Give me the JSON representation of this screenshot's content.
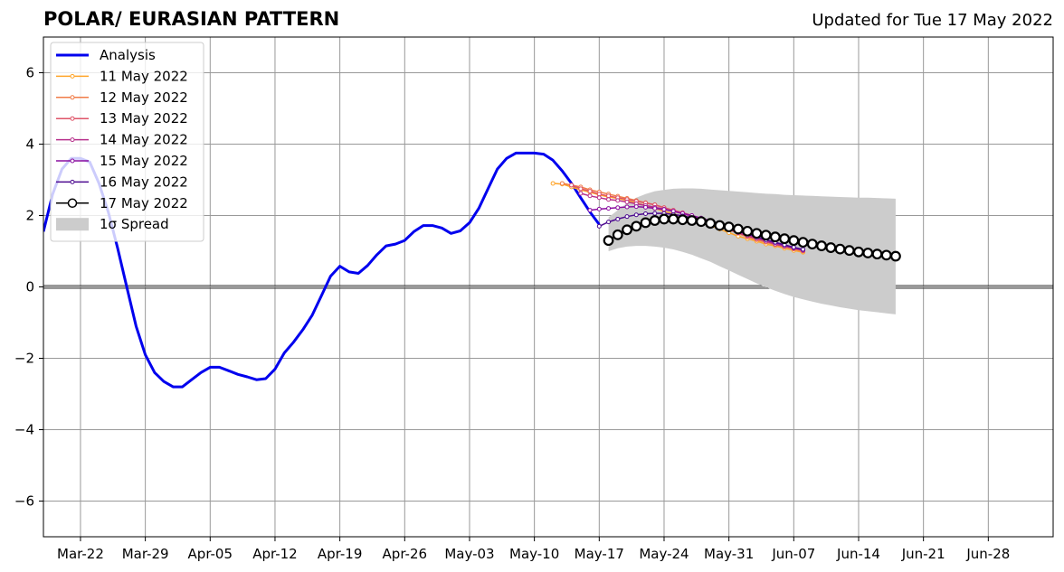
{
  "chart_data": {
    "type": "line",
    "title": "POLAR/ EURASIAN  PATTERN",
    "subtitle": "Updated for Tue 17 May 2022",
    "xlabel": "",
    "ylabel": "",
    "x_start": "2022-03-16",
    "x_ticks": [
      "Mar-22",
      "Mar-29",
      "Apr-05",
      "Apr-12",
      "Apr-19",
      "Apr-26",
      "May-03",
      "May-10",
      "May-17",
      "May-24",
      "May-31",
      "Jun-07",
      "Jun-14",
      "Jun-21",
      "Jun-28"
    ],
    "xlim": [
      "2022-03-18",
      "2022-07-05"
    ],
    "ylim": [
      -7,
      7
    ],
    "y_ticks": [
      -6,
      -4,
      -2,
      0,
      2,
      4,
      6
    ],
    "grid": true,
    "legend_position": "upper left",
    "analysis": {
      "name": "Analysis",
      "color": "#0000ee",
      "start_date": "2022-03-18",
      "values": [
        1.55,
        2.6,
        3.3,
        3.6,
        3.6,
        3.5,
        2.9,
        2.1,
        1.1,
        0.0,
        -1.1,
        -1.9,
        -2.4,
        -2.65,
        -2.8,
        -2.8,
        -2.6,
        -2.4,
        -2.25,
        -2.25,
        -2.35,
        -2.45,
        -2.52,
        -2.6,
        -2.57,
        -2.3,
        -1.85,
        -1.55,
        -1.2,
        -0.8,
        -0.25,
        0.3,
        0.58,
        0.42,
        0.38,
        0.6,
        0.9,
        1.15,
        1.2,
        1.3,
        1.55,
        1.72,
        1.72,
        1.65,
        1.5,
        1.57,
        1.8,
        2.2,
        2.75,
        3.3,
        3.6,
        3.75,
        3.75,
        3.75,
        3.72,
        3.55,
        3.25,
        2.9,
        2.5,
        2.1,
        1.75
      ]
    },
    "forecasts": [
      {
        "name": "11 May 2022",
        "color": "#ffa52a",
        "start_date": "2022-05-12",
        "values": [
          2.9,
          2.88,
          2.8,
          2.72,
          2.65,
          2.58,
          2.52,
          2.48,
          2.42,
          2.35,
          2.28,
          2.2,
          2.12,
          2.05,
          1.97,
          1.9,
          1.82,
          1.72,
          1.62,
          1.52,
          1.42,
          1.35,
          1.28,
          1.2,
          1.15,
          1.08,
          1.02,
          0.97
        ]
      },
      {
        "name": "12 May 2022",
        "color": "#f07c48",
        "start_date": "2022-05-13",
        "values": [
          2.9,
          2.85,
          2.8,
          2.72,
          2.66,
          2.6,
          2.54,
          2.48,
          2.42,
          2.36,
          2.3,
          2.22,
          2.14,
          2.06,
          1.98,
          1.9,
          1.8,
          1.7,
          1.6,
          1.5,
          1.4,
          1.32,
          1.25,
          1.18,
          1.12,
          1.06,
          1.0
        ]
      },
      {
        "name": "13 May 2022",
        "color": "#df5468",
        "start_date": "2022-05-14",
        "values": [
          2.85,
          2.75,
          2.68,
          2.6,
          2.55,
          2.5,
          2.45,
          2.4,
          2.35,
          2.3,
          2.22,
          2.15,
          2.08,
          2.0,
          1.92,
          1.82,
          1.72,
          1.62,
          1.52,
          1.42,
          1.35,
          1.28,
          1.2,
          1.14,
          1.08,
          1.02
        ]
      },
      {
        "name": "14 May 2022",
        "color": "#b72f8b",
        "start_date": "2022-05-15",
        "values": [
          2.62,
          2.55,
          2.5,
          2.45,
          2.42,
          2.38,
          2.33,
          2.28,
          2.23,
          2.18,
          2.12,
          2.05,
          1.98,
          1.9,
          1.82,
          1.72,
          1.62,
          1.52,
          1.44,
          1.36,
          1.28,
          1.2,
          1.14,
          1.08,
          1.02
        ]
      },
      {
        "name": "15 May 2022",
        "color": "#8a0ea0",
        "start_date": "2022-05-16",
        "values": [
          2.15,
          2.18,
          2.2,
          2.22,
          2.24,
          2.25,
          2.23,
          2.2,
          2.17,
          2.12,
          2.06,
          2.0,
          1.93,
          1.85,
          1.76,
          1.66,
          1.57,
          1.48,
          1.4,
          1.32,
          1.24,
          1.17,
          1.1,
          1.04
        ]
      },
      {
        "name": "16 May 2022",
        "color": "#4c0a90",
        "start_date": "2022-05-17",
        "values": [
          1.7,
          1.82,
          1.9,
          1.97,
          2.02,
          2.05,
          2.06,
          2.06,
          2.03,
          1.99,
          1.94,
          1.87,
          1.8,
          1.73,
          1.65,
          1.56,
          1.48,
          1.4,
          1.32,
          1.25,
          1.18,
          1.11,
          1.05
        ]
      }
    ],
    "current": {
      "name": "17 May 2022",
      "color": "#000000",
      "start_date": "2022-05-18",
      "values": [
        1.3,
        1.46,
        1.6,
        1.7,
        1.8,
        1.86,
        1.9,
        1.9,
        1.88,
        1.86,
        1.83,
        1.78,
        1.72,
        1.68,
        1.62,
        1.56,
        1.5,
        1.45,
        1.4,
        1.35,
        1.3,
        1.25,
        1.2,
        1.15,
        1.1,
        1.06,
        1.02,
        0.98,
        0.95,
        0.92,
        0.89,
        0.86
      ]
    },
    "spread": {
      "name": "1σ Spread",
      "color": "#cccccc",
      "start_date": "2022-05-18",
      "upper": [
        1.95,
        2.15,
        2.35,
        2.5,
        2.6,
        2.68,
        2.72,
        2.75,
        2.76,
        2.76,
        2.75,
        2.73,
        2.71,
        2.69,
        2.67,
        2.65,
        2.63,
        2.61,
        2.6,
        2.58,
        2.57,
        2.56,
        2.55,
        2.54,
        2.53,
        2.52,
        2.51,
        2.5,
        2.5,
        2.49,
        2.48,
        2.47
      ],
      "lower": [
        1.0,
        1.08,
        1.13,
        1.15,
        1.15,
        1.13,
        1.1,
        1.05,
        0.98,
        0.9,
        0.8,
        0.7,
        0.58,
        0.46,
        0.34,
        0.22,
        0.1,
        -0.01,
        -0.11,
        -0.2,
        -0.28,
        -0.35,
        -0.41,
        -0.47,
        -0.52,
        -0.57,
        -0.61,
        -0.65,
        -0.68,
        -0.71,
        -0.74,
        -0.77
      ]
    }
  }
}
